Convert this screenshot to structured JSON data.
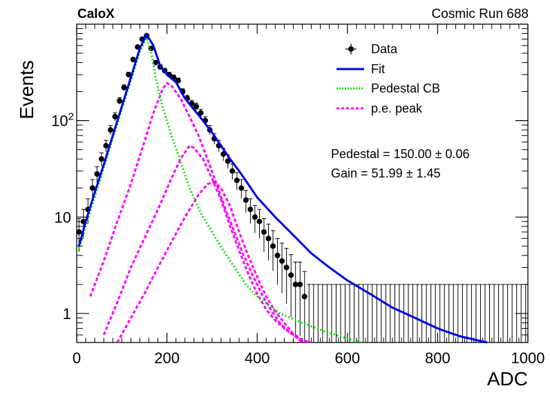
{
  "header": {
    "experiment": "CaloX",
    "run": "Cosmic Run 688"
  },
  "stats": {
    "pedestal": "Pedestal = 150.00 ± 0.06",
    "gain": "Gain = 51.99 ± 1.45"
  },
  "colors": {
    "fit": "#0000dd",
    "pedestal": "#00dd00",
    "pe": "#ff00ff",
    "data": "#000000"
  },
  "chart_data": {
    "type": "scatter",
    "xlabel": "ADC",
    "ylabel": "Events",
    "xlim": [
      0,
      1000
    ],
    "ylim": [
      0.5,
      1000
    ],
    "yscale": "log",
    "xticks": [
      0,
      200,
      400,
      600,
      800,
      1000
    ],
    "xtick_labels": [
      "0",
      "200",
      "400",
      "600",
      "800",
      "1000"
    ],
    "yticks": [
      1,
      10,
      100
    ],
    "ytick_labels": [
      "1",
      "10",
      "10^2"
    ],
    "legend": {
      "position": "top-right",
      "entries": [
        {
          "label": "Data",
          "style": "marker"
        },
        {
          "label": "Fit",
          "style": "solid",
          "color": "#0000dd"
        },
        {
          "label": "Pedestal CB",
          "style": "dotted",
          "color": "#00dd00"
        },
        {
          "label": "p.e. peak",
          "style": "dashed",
          "color": "#ff00ff"
        }
      ]
    },
    "series": [
      {
        "name": "Data",
        "kind": "points_with_errors",
        "x": [
          5,
          15,
          25,
          35,
          45,
          55,
          65,
          75,
          85,
          95,
          105,
          115,
          125,
          135,
          145,
          155,
          165,
          175,
          185,
          195,
          205,
          215,
          225,
          235,
          245,
          255,
          265,
          275,
          285,
          295,
          305,
          315,
          325,
          335,
          345,
          355,
          365,
          375,
          385,
          395,
          405,
          415,
          425,
          435,
          445,
          455,
          465,
          475,
          485,
          495,
          505,
          515,
          525,
          535,
          545,
          555,
          565,
          575,
          585,
          595,
          605,
          615,
          625,
          635,
          645,
          655,
          665,
          675,
          685,
          695,
          705,
          715,
          725,
          735,
          745,
          755,
          765,
          775,
          785,
          795,
          805,
          815,
          825,
          835,
          845,
          855,
          865,
          875,
          885,
          895,
          905,
          915,
          925,
          935,
          945,
          955,
          965,
          975,
          985,
          995
        ],
        "y": [
          7,
          9,
          12,
          20,
          28,
          40,
          55,
          80,
          110,
          160,
          220,
          300,
          430,
          580,
          700,
          760,
          560,
          400,
          360,
          330,
          300,
          280,
          260,
          200,
          170,
          150,
          140,
          120,
          100,
          80,
          65,
          55,
          45,
          38,
          30,
          24,
          20,
          15,
          12,
          10,
          9,
          7,
          6,
          5,
          4,
          3.5,
          3,
          2.5,
          2,
          2,
          1.5,
          1,
          1,
          1,
          1,
          1,
          1,
          1,
          1,
          1,
          1,
          1,
          1,
          1,
          1,
          1,
          1,
          1,
          1,
          1,
          1,
          1,
          1,
          1,
          1,
          1,
          1,
          1,
          1,
          1,
          1,
          1,
          1,
          1,
          1,
          1,
          1,
          1,
          1,
          1,
          1,
          1,
          1,
          1,
          1,
          1,
          1,
          1,
          1,
          1
        ]
      },
      {
        "name": "Fit",
        "kind": "line",
        "x": [
          5,
          20,
          40,
          60,
          80,
          100,
          120,
          140,
          155,
          170,
          185,
          200,
          220,
          240,
          260,
          280,
          300,
          320,
          340,
          360,
          380,
          400,
          440,
          480,
          520,
          560,
          600,
          650,
          700,
          750,
          800,
          850,
          910
        ],
        "y": [
          5,
          9,
          18,
          35,
          70,
          140,
          280,
          560,
          780,
          600,
          370,
          300,
          250,
          170,
          130,
          100,
          75,
          55,
          40,
          30,
          22,
          16,
          10,
          6.5,
          4.2,
          3,
          2.2,
          1.6,
          1.15,
          0.9,
          0.7,
          0.58,
          0.5
        ]
      },
      {
        "name": "Pedestal CB",
        "kind": "line",
        "x": [
          5,
          20,
          40,
          60,
          80,
          100,
          120,
          140,
          155,
          165,
          175,
          190,
          210,
          230,
          250,
          275,
          300,
          325,
          350,
          375,
          400,
          450,
          500,
          550,
          600,
          630
        ],
        "y": [
          4.5,
          8,
          16,
          32,
          65,
          130,
          260,
          520,
          720,
          520,
          280,
          140,
          70,
          38,
          20,
          11,
          7,
          4.5,
          3,
          2,
          1.5,
          1,
          0.8,
          0.65,
          0.55,
          0.5
        ]
      },
      {
        "name": "p.e. peak 1",
        "kind": "line",
        "x": [
          30,
          60,
          90,
          120,
          150,
          170,
          190,
          200,
          210,
          230,
          250,
          270,
          290,
          310,
          330,
          350,
          370,
          390,
          410,
          430,
          450,
          470,
          490,
          500
        ],
        "y": [
          1.5,
          3.5,
          9,
          22,
          60,
          120,
          210,
          245,
          230,
          170,
          110,
          70,
          40,
          22,
          12,
          7,
          4,
          2.5,
          1.6,
          1.1,
          0.8,
          0.65,
          0.55,
          0.5
        ]
      },
      {
        "name": "p.e. peak 2",
        "kind": "line",
        "x": [
          60,
          90,
          120,
          150,
          180,
          210,
          230,
          250,
          260,
          280,
          300,
          320,
          340,
          360,
          380,
          400,
          420,
          440,
          460,
          480,
          500,
          510
        ],
        "y": [
          0.6,
          1.3,
          3,
          6,
          12,
          25,
          40,
          55,
          52,
          40,
          25,
          15,
          8,
          4.5,
          2.6,
          1.6,
          1.1,
          0.85,
          0.7,
          0.6,
          0.52,
          0.5
        ]
      },
      {
        "name": "p.e. peak 3",
        "kind": "line",
        "x": [
          90,
          120,
          150,
          180,
          210,
          240,
          270,
          290,
          305,
          320,
          340,
          360,
          380,
          400,
          420,
          440,
          460,
          480,
          500,
          520
        ],
        "y": [
          0.5,
          0.9,
          1.6,
          3,
          5.5,
          10,
          17,
          22,
          23,
          20,
          13,
          7,
          4,
          2.4,
          1.5,
          1.05,
          0.8,
          0.62,
          0.53,
          0.5
        ]
      }
    ]
  }
}
